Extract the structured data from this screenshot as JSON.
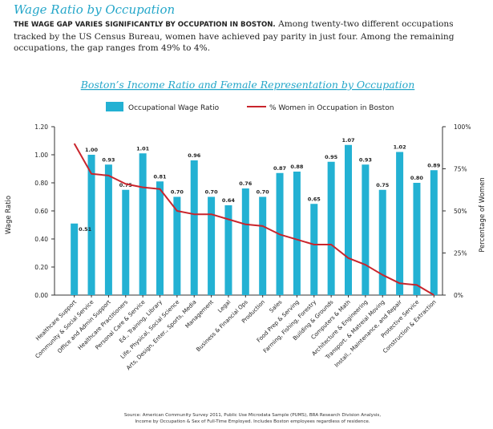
{
  "header": {
    "title": "Wage Ratio by Occupation",
    "intro_lead": "THE WAGE GAP VARIES SIGNIFICANTLY BY OCCUPATION IN BOSTON.",
    "intro_rest": " Among twenty-two different occupations tracked by the US Census Bureau, women have achieved pay parity in just four. Among the remaining occupations, the gap ranges from 49% to 4%."
  },
  "chart_data": {
    "type": "bar",
    "title": "Boston’s Income Ratio and Female Representation by Occupation",
    "ylabel": "Wage Ratio",
    "y2label": "Percentage of Women",
    "ylim": [
      0,
      1.2
    ],
    "y2lim": [
      0,
      100
    ],
    "yticks": [
      "0.00",
      "0.20",
      "0.40",
      "0.60",
      "0.80",
      "1.00",
      "1.20"
    ],
    "y2ticks": [
      "0%",
      "25%",
      "50%",
      "75%",
      "100%"
    ],
    "categories": [
      "Healthcare Support",
      "Community & Social Service",
      "Office and Admin Support",
      "Healthcare Practitioners",
      "Personal Care & Service",
      "Ed., Training, Library",
      "Life, Physical, Social Science",
      "Arts, Design, Enter., Sports, Media",
      "Management",
      "Legal",
      "Business & Financial Ops",
      "Production",
      "Sales",
      "Food Prep & Serving",
      "Farming, Fishing, Forestry",
      "Building & Grounds",
      "Computers & Math",
      "Architecture & Engineering",
      "Transport. & Matreial Moving",
      "Install., Maintenance, and Repair",
      "Protective Service",
      "Construction & Extraction"
    ],
    "series": [
      {
        "name": "Occupational Wage Ratio",
        "type": "bar",
        "color": "#23b1d3",
        "values": [
          0.51,
          1.0,
          0.93,
          0.75,
          1.01,
          0.81,
          0.7,
          0.96,
          0.7,
          0.64,
          0.76,
          0.7,
          0.87,
          0.88,
          0.65,
          0.95,
          1.07,
          0.93,
          0.75,
          1.02,
          0.8,
          0.89
        ],
        "labels": [
          "0.51",
          "1.00",
          "0.93",
          "0.75",
          "1.01",
          "0.81",
          "0.70",
          "0.96",
          "0.70",
          "0.64",
          "0.76",
          "0.70",
          "0.87",
          "0.88",
          "0.65",
          "0.95",
          "1.07",
          "0.93",
          "0.75",
          "1.02",
          "0.80",
          "0.89"
        ]
      },
      {
        "name": "% Women in Occupation in Boston",
        "type": "line",
        "axis": "right",
        "color": "#c9252c",
        "values": [
          90,
          72,
          71,
          66,
          64,
          63,
          50,
          48,
          48,
          45,
          42,
          41,
          36,
          33,
          30,
          30,
          22,
          18,
          12,
          7,
          6,
          0
        ]
      }
    ],
    "legend_position": "top",
    "grid": false
  },
  "source": {
    "line1": "Source: American Community Survey 2011, Public Use Microdata Sample (PUMS), BRA Research Division Analysis,",
    "line2": "Income by Occupation & Sex of Full-Time Employed. Includes Boston employees regardless of residence."
  }
}
